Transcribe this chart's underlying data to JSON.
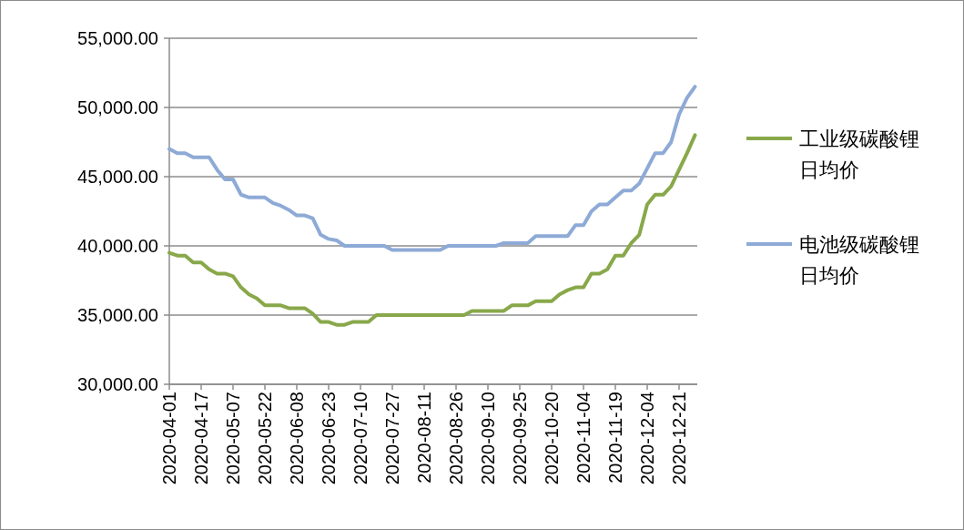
{
  "chart_data": {
    "type": "line",
    "categories": [
      "2020-04-01",
      null,
      null,
      null,
      "2020-04-17",
      null,
      null,
      null,
      "2020-05-07",
      null,
      null,
      null,
      "2020-05-22",
      null,
      null,
      null,
      "2020-06-08",
      null,
      null,
      null,
      "2020-06-23",
      null,
      null,
      null,
      "2020-07-10",
      null,
      null,
      null,
      "2020-07-27",
      null,
      null,
      null,
      "2020-08-11",
      null,
      null,
      null,
      "2020-08-26",
      null,
      null,
      null,
      "2020-09-10",
      null,
      null,
      null,
      "2020-09-25",
      null,
      null,
      null,
      "2020-10-20",
      null,
      null,
      null,
      "2020-11-04",
      null,
      null,
      null,
      "2020-11-19",
      null,
      null,
      null,
      "2020-12-04",
      null,
      null,
      null,
      "2020-12-21",
      null,
      null
    ],
    "series": [
      {
        "name": "工业级碳酸锂日均价",
        "color": "#88a84a",
        "values": [
          39500,
          39300,
          39300,
          38800,
          38800,
          38300,
          38000,
          38000,
          37800,
          37000,
          36500,
          36200,
          35700,
          35700,
          35700,
          35500,
          35500,
          35500,
          35100,
          34500,
          34500,
          34300,
          34300,
          34500,
          34500,
          34500,
          35000,
          35000,
          35000,
          35000,
          35000,
          35000,
          35000,
          35000,
          35000,
          35000,
          35000,
          35000,
          35300,
          35300,
          35300,
          35300,
          35300,
          35700,
          35700,
          35700,
          36000,
          36000,
          36000,
          36500,
          36800,
          37000,
          37000,
          38000,
          38000,
          38300,
          39300,
          39300,
          40200,
          40800,
          43000,
          43700,
          43700,
          44300,
          45500,
          46700,
          48000
        ]
      },
      {
        "name": "电池级碳酸锂日均价",
        "color": "#8eaad6",
        "values": [
          47000,
          46700,
          46700,
          46400,
          46400,
          46400,
          45500,
          44800,
          44800,
          43700,
          43500,
          43500,
          43500,
          43100,
          42900,
          42600,
          42200,
          42200,
          42000,
          40800,
          40500,
          40400,
          40000,
          40000,
          40000,
          40000,
          40000,
          40000,
          39700,
          39700,
          39700,
          39700,
          39700,
          39700,
          39700,
          40000,
          40000,
          40000,
          40000,
          40000,
          40000,
          40000,
          40200,
          40200,
          40200,
          40200,
          40700,
          40700,
          40700,
          40700,
          40700,
          41500,
          41500,
          42500,
          43000,
          43000,
          43500,
          44000,
          44000,
          44500,
          45600,
          46700,
          46700,
          47500,
          49500,
          50700,
          51500
        ]
      }
    ],
    "ylim": [
      30000,
      55000
    ],
    "yticks": [
      {
        "value": 30000,
        "label": "30,000.00"
      },
      {
        "value": 35000,
        "label": "35,000.00"
      },
      {
        "value": 40000,
        "label": "40,000.00"
      },
      {
        "value": 45000,
        "label": "45,000.00"
      },
      {
        "value": 50000,
        "label": "50,000.00"
      },
      {
        "value": 55000,
        "label": "55,000.00"
      }
    ],
    "grid": "y",
    "legend": "right",
    "line_style": "solid",
    "marker": "none"
  }
}
